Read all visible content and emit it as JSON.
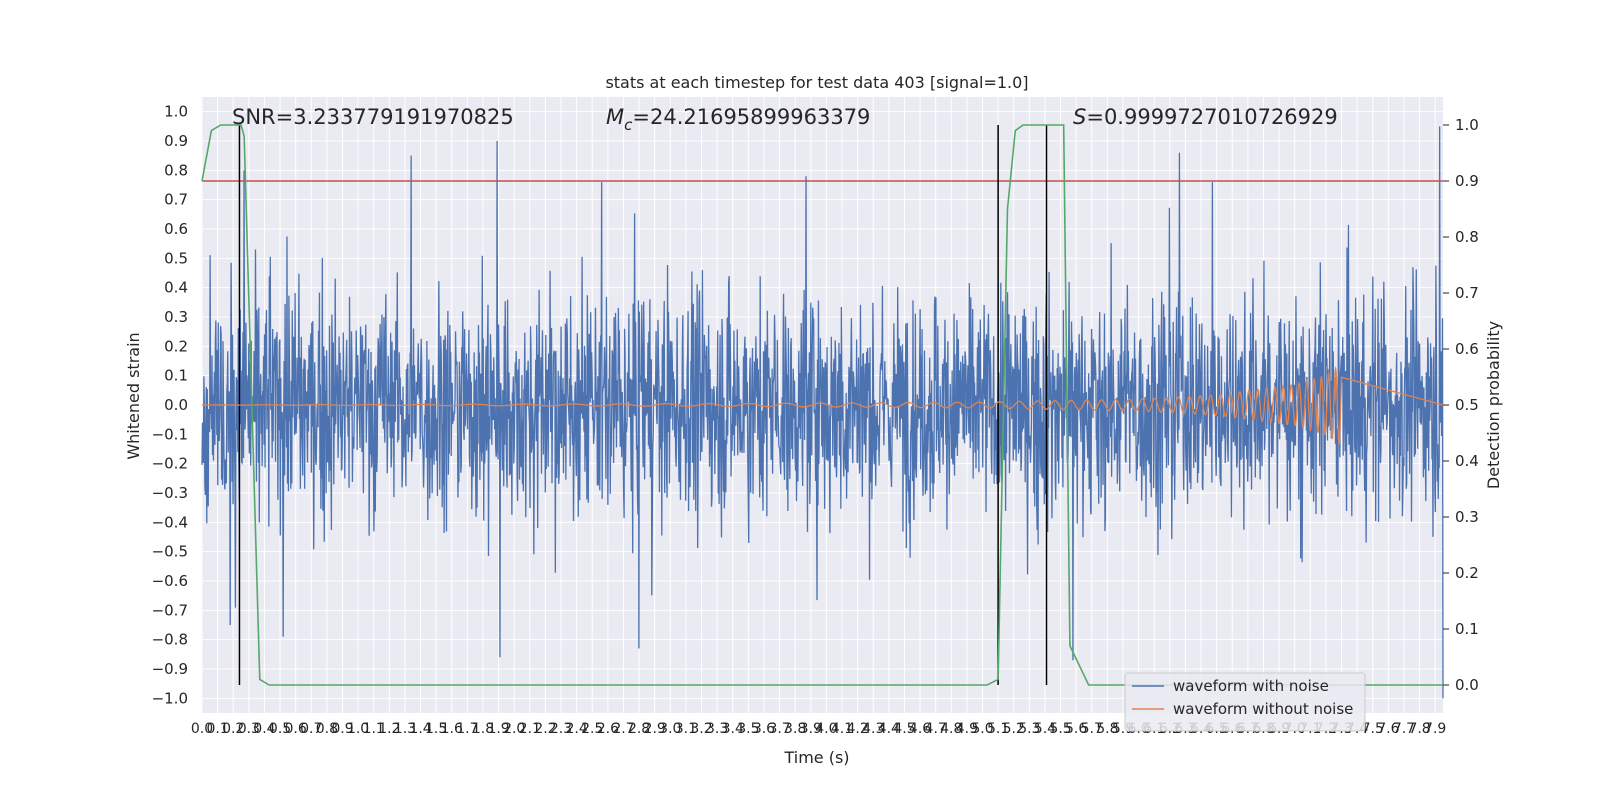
{
  "chart_data": {
    "type": "line",
    "title": "stats at each timestep for test data 403 [signal=1.0]",
    "xlabel": "Time (s)",
    "ylabel": "Whitened strain",
    "y2label": "Detection probability",
    "xlim": [
      0.0,
      7.95
    ],
    "ylim": [
      -1.05,
      1.05
    ],
    "y2lim": [
      -0.05,
      1.05
    ],
    "grid": true,
    "x_ticks": [
      0.0,
      0.1,
      0.2,
      0.3,
      0.4,
      0.5,
      0.6,
      0.7,
      0.8,
      0.9,
      1.0,
      1.1,
      1.2,
      1.3,
      1.4,
      1.5,
      1.6,
      1.7,
      1.8,
      1.9,
      2.0,
      2.1,
      2.2,
      2.3,
      2.4,
      2.5,
      2.6,
      2.7,
      2.8,
      2.9,
      3.0,
      3.1,
      3.2,
      3.3,
      3.4,
      3.5,
      3.6,
      3.7,
      3.8,
      3.9,
      4.0,
      4.1,
      4.2,
      4.3,
      4.4,
      4.5,
      4.6,
      4.7,
      4.8,
      4.9,
      5.0,
      5.1,
      5.2,
      5.3,
      5.4,
      5.5,
      5.6,
      5.7,
      5.8,
      5.9,
      6.0,
      6.1,
      6.2,
      6.3,
      6.4,
      6.5,
      6.6,
      6.7,
      6.8,
      6.9,
      7.0,
      7.1,
      7.2,
      7.3,
      7.4,
      7.5,
      7.6,
      7.7,
      7.8,
      7.9
    ],
    "y_ticks": [
      "1.0",
      "0.9",
      "0.8",
      "0.7",
      "0.6",
      "0.5",
      "0.4",
      "0.3",
      "0.2",
      "0.1",
      "0.0",
      "−0.1",
      "−0.2",
      "−0.3",
      "−0.4",
      "−0.5",
      "−0.6",
      "−0.7",
      "−0.8",
      "−0.9",
      "−1.0"
    ],
    "y2_ticks": [
      "1.0",
      "0.9",
      "0.8",
      "0.7",
      "0.6",
      "0.5",
      "0.4",
      "0.3",
      "0.2",
      "0.1",
      "0.0"
    ],
    "annotations": {
      "snr": "SNR=3.233779191970825",
      "mc_symbol": "M",
      "mc_sub": "c",
      "mc_value": "=24.21695899963379",
      "s_symbol": "S",
      "s_value": "=0.9999727010726929"
    },
    "series": [
      {
        "name": "waveform with noise",
        "color": "#4c72b0",
        "description": "dense whitened noisy strain, approx ±0.4 envelope with spikes up to ~0.95 and down to ~-1.0",
        "peaks": [
          {
            "x": 0.27,
            "y": 0.8
          },
          {
            "x": 1.34,
            "y": 0.85
          },
          {
            "x": 1.89,
            "y": 0.9
          },
          {
            "x": 3.87,
            "y": 0.78
          },
          {
            "x": 6.26,
            "y": 0.86
          },
          {
            "x": 7.93,
            "y": 0.95
          },
          {
            "x": 0.18,
            "y": -0.75
          },
          {
            "x": 0.52,
            "y": -0.79
          },
          {
            "x": 1.91,
            "y": -0.86
          },
          {
            "x": 2.8,
            "y": -0.83
          },
          {
            "x": 5.58,
            "y": -0.87
          },
          {
            "x": 7.95,
            "y": -1.0
          }
        ]
      },
      {
        "name": "waveform without noise",
        "color": "#dd8452",
        "description": "chirp signal, amplitude ~0 until ~3.5 s, growing to ±0.14 at ~7.3 s, then ending",
        "envelope": [
          {
            "x": 3.5,
            "amp": 0.005
          },
          {
            "x": 5.0,
            "amp": 0.01
          },
          {
            "x": 6.0,
            "amp": 0.02
          },
          {
            "x": 6.5,
            "amp": 0.035
          },
          {
            "x": 7.0,
            "amp": 0.07
          },
          {
            "x": 7.2,
            "amp": 0.1
          },
          {
            "x": 7.3,
            "amp": 0.14
          }
        ],
        "end_x": 7.3
      },
      {
        "name": "Detection probability",
        "axis": "right",
        "color": "#55a868",
        "x": [
          0.0,
          0.06,
          0.12,
          0.25,
          0.27,
          0.37,
          0.43,
          5.03,
          5.1,
          5.16,
          5.21,
          5.26,
          5.52,
          5.56,
          5.68,
          7.95
        ],
        "y": [
          0.9,
          0.99,
          1.0,
          1.0,
          0.98,
          0.01,
          0.0,
          0.0,
          0.01,
          0.85,
          0.99,
          1.0,
          1.0,
          0.07,
          0.0,
          0.0
        ]
      }
    ],
    "threshold": {
      "y2": 0.9,
      "color": "#c44e52"
    },
    "markers": {
      "x": [
        0.24,
        5.1,
        5.41
      ],
      "color": "#000000"
    },
    "legend": {
      "placement": "lower-right",
      "entries": [
        "waveform with noise",
        "waveform without noise"
      ]
    }
  }
}
